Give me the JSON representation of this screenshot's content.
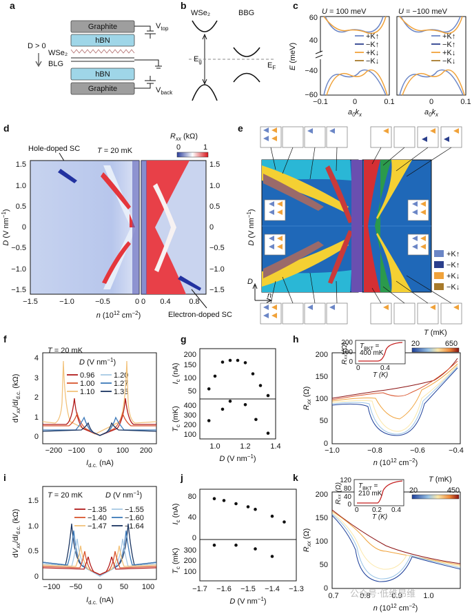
{
  "panels": {
    "a": {
      "letter": "a",
      "layers": [
        "Graphite",
        "hBN",
        "hBN",
        "Graphite"
      ],
      "d_label": "D > 0",
      "wse2": "WSe₂",
      "blg": "BLG",
      "vtop": "V_top",
      "vback": "V_back"
    },
    "b": {
      "letter": "b",
      "left": "WSe₂",
      "right": "BBG",
      "eg": "E_g",
      "ef": "E_F"
    },
    "c": {
      "letter": "c",
      "titles": [
        "U = 100 meV",
        "U = −100 meV"
      ],
      "ylabel": "E (meV)",
      "xlabel": "a₀kₓ",
      "yticks": [
        "60",
        "40",
        "−40",
        "−60"
      ],
      "xticks": [
        "−0.1",
        "0",
        "0.1"
      ],
      "legend": [
        "+K↑",
        "−K↑",
        "+K↓",
        "−K↓"
      ]
    },
    "d": {
      "letter": "d",
      "hole_sc": "Hole-doped SC",
      "electron_sc": "Electron-doped SC",
      "temp": "T = 20 mK",
      "cbar_label": "Rₓₓ (kΩ)",
      "cbar_ticks": [
        "0",
        "1"
      ],
      "ylabel": "D (V nm⁻¹)",
      "xlabel": "n (10¹² cm⁻²)",
      "yticks": [
        "1.5",
        "1.0",
        "0.5",
        "0",
        "−0.5",
        "−1.0",
        "−1.5"
      ],
      "xticks_left": [
        "−1.5",
        "−1.0",
        "−0.5",
        "0"
      ],
      "xticks_right": [
        "0",
        "0.4",
        "0.8"
      ]
    },
    "e": {
      "letter": "e",
      "ylabel": "D (V nm⁻¹)",
      "axis_d": "D",
      "axis_n": "n",
      "legend": [
        "+K↑",
        "−K↑",
        "+K↓",
        "−K↓"
      ]
    },
    "f": {
      "letter": "f",
      "temp": "T = 20 mK",
      "legend_title": "D (V nm⁻¹)",
      "legend": [
        "0.96",
        "1.00",
        "1.10",
        "1.20",
        "1.27",
        "1.35"
      ],
      "ylabel": "dVₓₓ/dI_d.c. (kΩ)",
      "xlabel": "I_d.c. (nA)",
      "xticks": [
        "−200",
        "−100",
        "0",
        "100",
        "200"
      ],
      "yticks": [
        "0",
        "1",
        "2",
        "3",
        "4"
      ]
    },
    "g": {
      "letter": "g",
      "ylabel_top": "I_c (nA)",
      "ylabel_bot": "T_c (mK)",
      "xlabel": "D (V nm⁻¹)",
      "yticks_top": [
        "200",
        "150",
        "100",
        "50"
      ],
      "yticks_bot": [
        "400",
        "300",
        "200",
        "100"
      ],
      "xticks": [
        "1.0",
        "1.2",
        "1.4"
      ]
    },
    "h": {
      "letter": "h",
      "ylabel": "Rₓₓ (Ω)",
      "xlabel": "n (10¹² cm⁻²)",
      "cbar_title": "T (mK)",
      "cbar_ticks": [
        "20",
        "650"
      ],
      "inset_label": "T_BKT = 400 mK",
      "inset_ylabel": "Rₓₓ (Ω)",
      "inset_xlabel": "T (K)",
      "inset_yticks": [
        "200",
        "100",
        "0"
      ],
      "inset_xticks": [
        "0",
        "0.4"
      ],
      "yticks": [
        "0",
        "50",
        "100",
        "150",
        "200"
      ],
      "xticks": [
        "−1.0",
        "−0.8",
        "−0.6",
        "−0.4"
      ]
    },
    "i": {
      "letter": "i",
      "temp": "T = 20 mK",
      "legend_title": "D (V nm⁻¹)",
      "legend": [
        "−1.35",
        "−1.40",
        "−1.47",
        "−1.55",
        "−1.60",
        "−1.64"
      ],
      "ylabel": "dVₓₓ/dI_d.c. (kΩ)",
      "xlabel": "I_d.c. (nA)",
      "xticks": [
        "−100",
        "−50",
        "0",
        "50",
        "100"
      ],
      "yticks": [
        "0",
        "0.5",
        "1.0",
        "1.5"
      ]
    },
    "j": {
      "letter": "j",
      "ylabel_top": "I_c (nA)",
      "ylabel_bot": "T_c (mK)",
      "xlabel": "D (V nm⁻¹)",
      "yticks_top": [
        "80",
        "40",
        "0"
      ],
      "yticks_bot": [
        "300",
        "200",
        "100"
      ],
      "xticks": [
        "−1.7",
        "−1.6",
        "−1.5",
        "−1.4",
        "−1.3"
      ]
    },
    "k": {
      "letter": "k",
      "ylabel": "Rₓₓ (Ω)",
      "xlabel": "n (10¹² cm⁻²)",
      "cbar_title": "T (mK)",
      "cbar_ticks": [
        "20",
        "450"
      ],
      "inset_label": "T_BKT = 210 mK",
      "inset_ylabel": "Rₓₓ (Ω)",
      "inset_xlabel": "T (K)",
      "inset_yticks": [
        "120",
        "80",
        "40",
        "0"
      ],
      "inset_xticks": [
        "0",
        "0.2",
        "0.4"
      ],
      "yticks": [
        "0",
        "50",
        "100",
        "150",
        "200"
      ],
      "xticks": [
        "0.7",
        "0.8",
        "0.9",
        "1.0"
      ]
    }
  },
  "watermark": "公众号·低维昂维",
  "colors": {
    "kup_plus": "#6b86c6",
    "kup_minus": "#2b3f8c",
    "kdn_plus": "#f0a23a",
    "kdn_minus": "#a77a2a",
    "red": "#d7191c"
  },
  "chart_data": [
    {
      "type": "scatter",
      "panel": "g-top",
      "xlabel": "D (V nm⁻¹)",
      "ylabel": "I_c (nA)",
      "x": [
        0.96,
        1.0,
        1.05,
        1.1,
        1.15,
        1.2,
        1.25,
        1.3,
        1.35
      ],
      "y": [
        80,
        118,
        160,
        165,
        165,
        158,
        125,
        90,
        60
      ],
      "xlim": [
        0.9,
        1.4
      ],
      "ylim": [
        50,
        200
      ]
    },
    {
      "type": "scatter",
      "panel": "g-bottom",
      "xlabel": "D (V nm⁻¹)",
      "ylabel": "T_c (mK)",
      "x": [
        0.96,
        1.05,
        1.1,
        1.2,
        1.27,
        1.35
      ],
      "y": [
        260,
        360,
        430,
        400,
        270,
        150
      ],
      "xlim": [
        0.9,
        1.4
      ],
      "ylim": [
        100,
        450
      ]
    },
    {
      "type": "scatter",
      "panel": "j-top",
      "xlabel": "D (V nm⁻¹)",
      "ylabel": "I_c (nA)",
      "x": [
        -1.64,
        -1.6,
        -1.55,
        -1.5,
        -1.47,
        -1.4,
        -1.35
      ],
      "y": [
        65,
        62,
        57,
        52,
        48,
        37,
        28
      ],
      "xlim": [
        -1.7,
        -1.3
      ],
      "ylim": [
        0,
        80
      ]
    },
    {
      "type": "scatter",
      "panel": "j-bottom",
      "xlabel": "D (V nm⁻¹)",
      "ylabel": "T_c (mK)",
      "x": [
        -1.64,
        -1.55,
        -1.47,
        -1.4
      ],
      "y": [
        290,
        290,
        270,
        230
      ],
      "xlim": [
        -1.7,
        -1.3
      ],
      "ylim": [
        100,
        320
      ]
    }
  ]
}
